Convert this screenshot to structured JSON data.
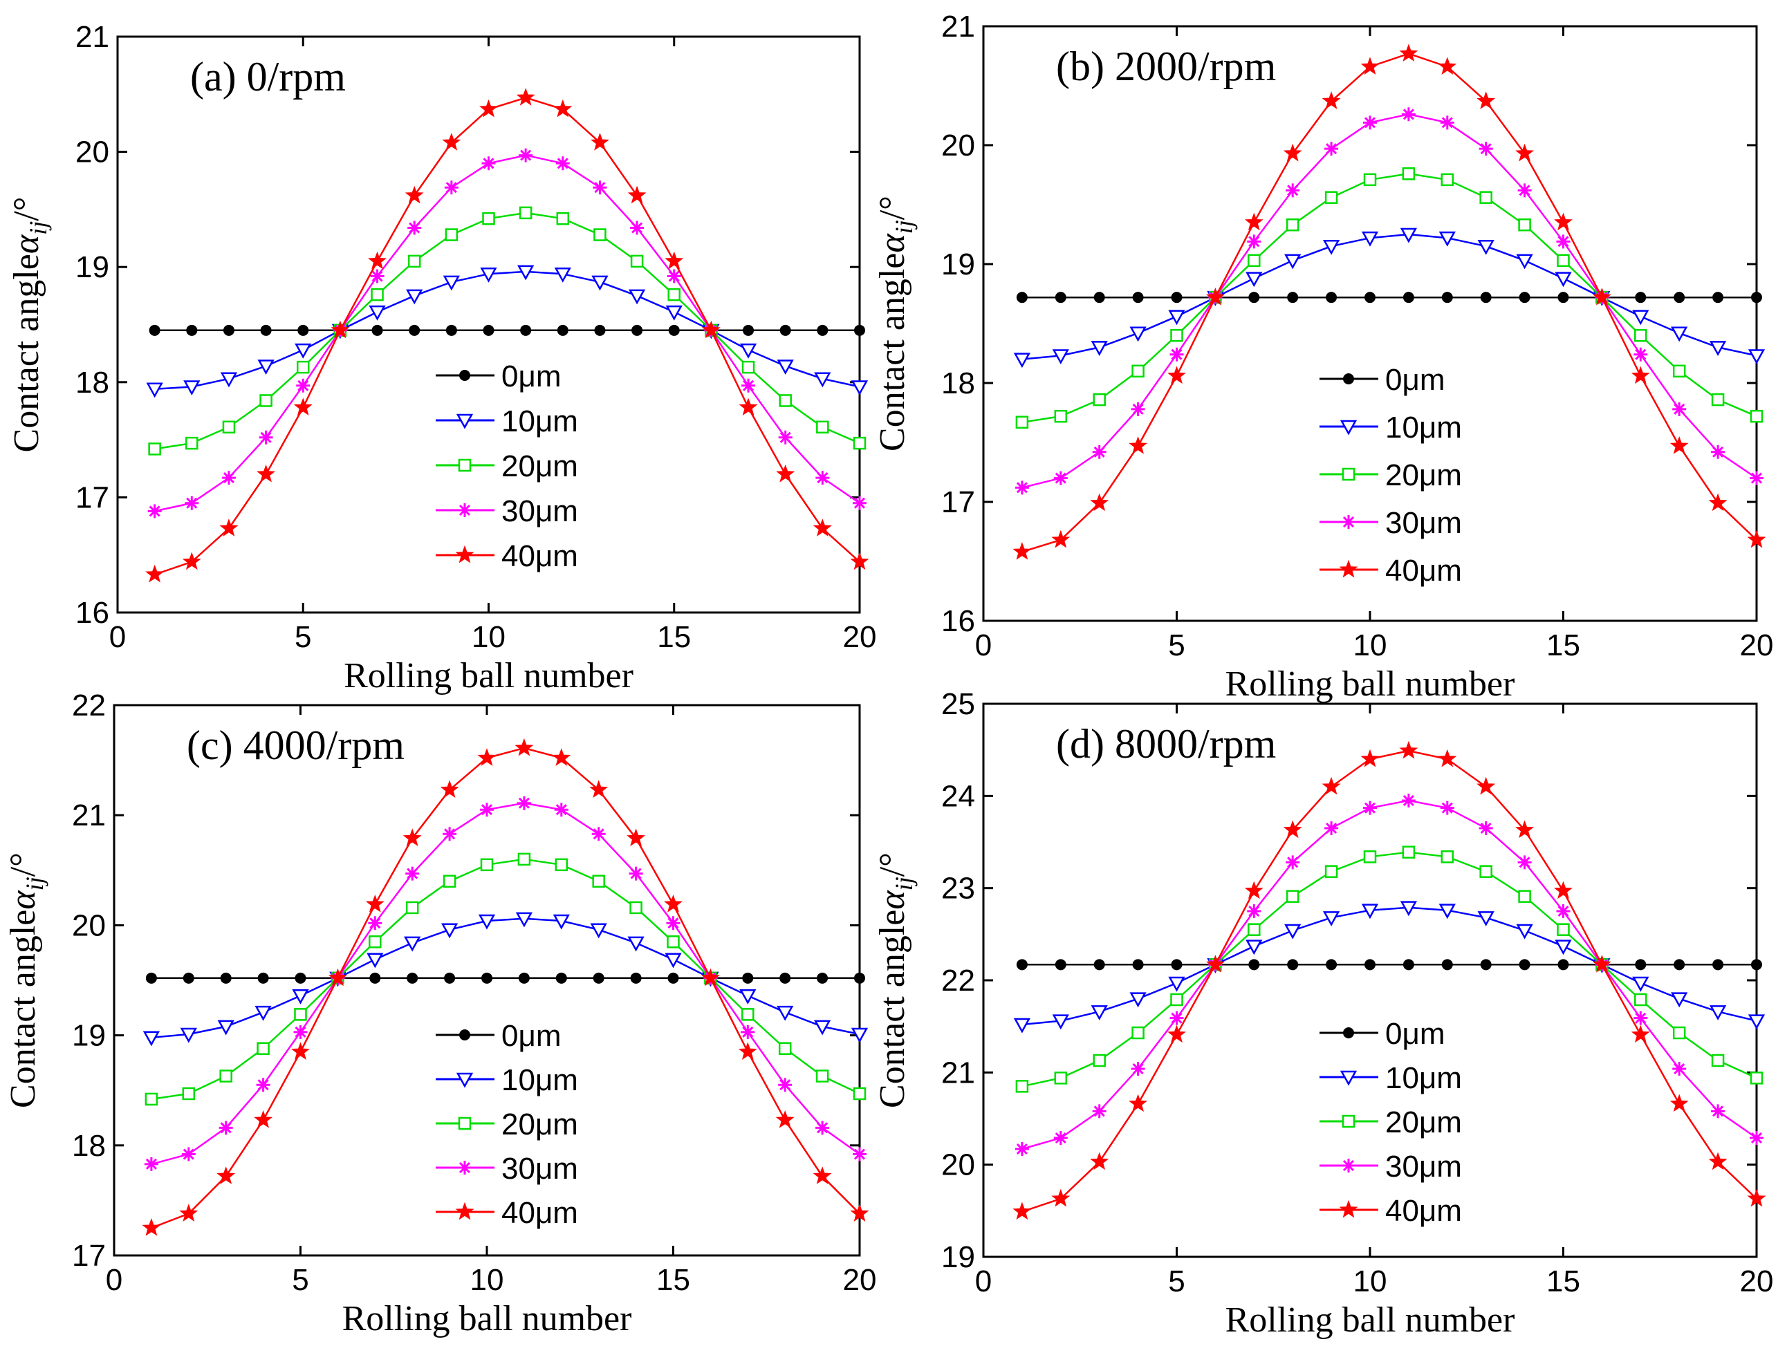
{
  "chart_data": [
    {
      "type": "line",
      "title": "(a) 0/rpm",
      "xlabel": "Rolling ball number",
      "ylabel": "Contact angle",
      "ylabel_symbol": "α",
      "ylabel_subscript": "ij",
      "ylabel_unit": "/°",
      "xlim": [
        0,
        20
      ],
      "ylim": [
        16,
        21
      ],
      "xticks": [
        "0",
        "5",
        "10",
        "15",
        "20"
      ],
      "yticks": [
        "16",
        "17",
        "18",
        "19",
        "20",
        "21"
      ],
      "x": [
        1,
        2,
        3,
        4,
        5,
        6,
        7,
        8,
        9,
        10,
        11,
        12,
        13,
        14,
        15,
        16,
        17,
        18,
        19,
        20
      ],
      "series": [
        {
          "name": "0μm",
          "color": "#000000",
          "marker": "dot",
          "values": [
            18.45,
            18.45,
            18.45,
            18.45,
            18.45,
            18.45,
            18.45,
            18.45,
            18.45,
            18.45,
            18.45,
            18.45,
            18.45,
            18.45,
            18.45,
            18.45,
            18.45,
            18.45,
            18.45,
            18.45
          ]
        },
        {
          "name": "10μm",
          "color": "#0000ff",
          "marker": "triangle-down",
          "values": [
            17.94,
            17.96,
            18.03,
            18.14,
            18.28,
            18.45,
            18.61,
            18.75,
            18.87,
            18.94,
            18.96,
            18.94,
            18.87,
            18.75,
            18.61,
            18.45,
            18.28,
            18.14,
            18.03,
            17.96
          ]
        },
        {
          "name": "20μm",
          "color": "#00dd00",
          "marker": "square",
          "values": [
            17.42,
            17.47,
            17.61,
            17.84,
            18.13,
            18.45,
            18.76,
            19.05,
            19.28,
            19.42,
            19.47,
            19.42,
            19.28,
            19.05,
            18.76,
            18.45,
            18.13,
            17.84,
            17.61,
            17.47
          ]
        },
        {
          "name": "30μm",
          "color": "#ff00ff",
          "marker": "asterisk",
          "values": [
            16.88,
            16.95,
            17.17,
            17.52,
            17.97,
            18.45,
            18.92,
            19.34,
            19.69,
            19.9,
            19.97,
            19.9,
            19.69,
            19.34,
            18.92,
            18.45,
            17.97,
            17.52,
            17.17,
            16.95
          ]
        },
        {
          "name": "40μm",
          "color": "#ff0000",
          "marker": "star",
          "values": [
            16.33,
            16.44,
            16.73,
            17.2,
            17.78,
            18.45,
            19.05,
            19.62,
            20.08,
            20.37,
            20.47,
            20.37,
            20.08,
            19.62,
            19.05,
            18.45,
            17.78,
            17.2,
            16.73,
            16.44
          ]
        }
      ]
    },
    {
      "type": "line",
      "title": "(b) 2000/rpm",
      "xlabel": "Rolling ball number",
      "ylabel": "Contact angle",
      "ylabel_symbol": "α",
      "ylabel_subscript": "ij",
      "ylabel_unit": "/°",
      "xlim": [
        0,
        20
      ],
      "ylim": [
        16,
        21
      ],
      "xticks": [
        "0",
        "5",
        "10",
        "15",
        "20"
      ],
      "yticks": [
        "16",
        "17",
        "18",
        "19",
        "20",
        "21"
      ],
      "x": [
        1,
        2,
        3,
        4,
        5,
        6,
        7,
        8,
        9,
        10,
        11,
        12,
        13,
        14,
        15,
        16,
        17,
        18,
        19,
        20
      ],
      "series": [
        {
          "name": "0μm",
          "color": "#000000",
          "marker": "dot",
          "values": [
            18.72,
            18.72,
            18.72,
            18.72,
            18.72,
            18.72,
            18.72,
            18.72,
            18.72,
            18.72,
            18.72,
            18.72,
            18.72,
            18.72,
            18.72,
            18.72,
            18.72,
            18.72,
            18.72,
            18.72
          ]
        },
        {
          "name": "10μm",
          "color": "#0000ff",
          "marker": "triangle-down",
          "values": [
            18.2,
            18.23,
            18.3,
            18.42,
            18.56,
            18.72,
            18.88,
            19.03,
            19.15,
            19.22,
            19.25,
            19.22,
            19.15,
            19.03,
            18.88,
            18.72,
            18.56,
            18.42,
            18.3,
            18.23
          ]
        },
        {
          "name": "20μm",
          "color": "#00dd00",
          "marker": "square",
          "values": [
            17.67,
            17.72,
            17.86,
            18.1,
            18.4,
            18.72,
            19.03,
            19.33,
            19.56,
            19.71,
            19.76,
            19.71,
            19.56,
            19.33,
            19.03,
            18.72,
            18.4,
            18.1,
            17.86,
            17.72
          ]
        },
        {
          "name": "30μm",
          "color": "#ff00ff",
          "marker": "asterisk",
          "values": [
            17.12,
            17.2,
            17.42,
            17.78,
            18.24,
            18.72,
            19.19,
            19.62,
            19.97,
            20.19,
            20.26,
            20.19,
            19.97,
            19.62,
            19.19,
            18.72,
            18.24,
            17.78,
            17.42,
            17.2
          ]
        },
        {
          "name": "40μm",
          "color": "#ff0000",
          "marker": "star",
          "values": [
            16.58,
            16.68,
            16.99,
            17.47,
            18.06,
            18.72,
            19.35,
            19.93,
            20.37,
            20.66,
            20.77,
            20.66,
            20.37,
            19.93,
            19.35,
            18.72,
            18.06,
            17.47,
            16.99,
            16.68
          ]
        }
      ]
    },
    {
      "type": "line",
      "title": "(c) 4000/rpm",
      "xlabel": "Rolling ball number",
      "ylabel": "Contact angle",
      "ylabel_symbol": "α",
      "ylabel_subscript": "ij",
      "ylabel_unit": "/°",
      "xlim": [
        0,
        20
      ],
      "ylim": [
        17,
        22
      ],
      "xticks": [
        "0",
        "5",
        "10",
        "15",
        "20"
      ],
      "yticks": [
        "17",
        "18",
        "19",
        "20",
        "21",
        "22"
      ],
      "x": [
        1,
        2,
        3,
        4,
        5,
        6,
        7,
        8,
        9,
        10,
        11,
        12,
        13,
        14,
        15,
        16,
        17,
        18,
        19,
        20
      ],
      "series": [
        {
          "name": "0μm",
          "color": "#000000",
          "marker": "dot",
          "values": [
            19.52,
            19.52,
            19.52,
            19.52,
            19.52,
            19.52,
            19.52,
            19.52,
            19.52,
            19.52,
            19.52,
            19.52,
            19.52,
            19.52,
            19.52,
            19.52,
            19.52,
            19.52,
            19.52,
            19.52
          ]
        },
        {
          "name": "10μm",
          "color": "#0000ff",
          "marker": "triangle-down",
          "values": [
            18.98,
            19.01,
            19.08,
            19.21,
            19.36,
            19.52,
            19.69,
            19.84,
            19.96,
            20.04,
            20.06,
            20.04,
            19.96,
            19.84,
            19.69,
            19.52,
            19.36,
            19.21,
            19.08,
            19.01
          ]
        },
        {
          "name": "20μm",
          "color": "#00dd00",
          "marker": "square",
          "values": [
            18.42,
            18.47,
            18.63,
            18.88,
            19.19,
            19.52,
            19.85,
            20.16,
            20.4,
            20.55,
            20.6,
            20.55,
            20.4,
            20.16,
            19.85,
            19.52,
            19.19,
            18.88,
            18.63,
            18.47
          ]
        },
        {
          "name": "30μm",
          "color": "#ff00ff",
          "marker": "asterisk",
          "values": [
            17.83,
            17.92,
            18.16,
            18.55,
            19.03,
            19.52,
            20.02,
            20.47,
            20.83,
            21.05,
            21.11,
            21.05,
            20.83,
            20.47,
            20.02,
            19.52,
            19.03,
            18.55,
            18.16,
            17.92
          ]
        },
        {
          "name": "40μm",
          "color": "#ff0000",
          "marker": "star",
          "values": [
            17.25,
            17.38,
            17.72,
            18.23,
            18.85,
            19.52,
            20.19,
            20.79,
            21.23,
            21.52,
            21.61,
            21.52,
            21.23,
            20.79,
            20.19,
            19.52,
            18.85,
            18.23,
            17.72,
            17.38
          ]
        }
      ]
    },
    {
      "type": "line",
      "title": "(d) 8000/rpm",
      "xlabel": "Rolling ball number",
      "ylabel": "Contact angle",
      "ylabel_symbol": "α",
      "ylabel_subscript": "ij",
      "ylabel_unit": "/°",
      "xlim": [
        0,
        20
      ],
      "ylim": [
        19,
        25
      ],
      "xticks": [
        "0",
        "5",
        "10",
        "15",
        "20"
      ],
      "yticks": [
        "19",
        "20",
        "21",
        "22",
        "23",
        "24",
        "25"
      ],
      "x": [
        1,
        2,
        3,
        4,
        5,
        6,
        7,
        8,
        9,
        10,
        11,
        12,
        13,
        14,
        15,
        16,
        17,
        18,
        19,
        20
      ],
      "series": [
        {
          "name": "0μm",
          "color": "#000000",
          "marker": "dot",
          "values": [
            22.17,
            22.17,
            22.17,
            22.17,
            22.17,
            22.17,
            22.17,
            22.17,
            22.17,
            22.17,
            22.17,
            22.17,
            22.17,
            22.17,
            22.17,
            22.17,
            22.17,
            22.17,
            22.17,
            22.17
          ]
        },
        {
          "name": "10μm",
          "color": "#0000ff",
          "marker": "triangle-down",
          "values": [
            21.52,
            21.56,
            21.66,
            21.8,
            21.97,
            22.17,
            22.37,
            22.54,
            22.68,
            22.76,
            22.79,
            22.76,
            22.68,
            22.54,
            22.37,
            22.17,
            21.97,
            21.8,
            21.66,
            21.56
          ]
        },
        {
          "name": "20μm",
          "color": "#00dd00",
          "marker": "square",
          "values": [
            20.85,
            20.94,
            21.13,
            21.43,
            21.79,
            22.17,
            22.55,
            22.91,
            23.18,
            23.34,
            23.39,
            23.34,
            23.18,
            22.91,
            22.55,
            22.17,
            21.79,
            21.43,
            21.13,
            20.94
          ]
        },
        {
          "name": "30μm",
          "color": "#ff00ff",
          "marker": "asterisk",
          "values": [
            20.17,
            20.29,
            20.58,
            21.04,
            21.59,
            22.17,
            22.75,
            23.28,
            23.65,
            23.87,
            23.95,
            23.87,
            23.65,
            23.28,
            22.75,
            22.17,
            21.59,
            21.04,
            20.58,
            20.29
          ]
        },
        {
          "name": "40μm",
          "color": "#ff0000",
          "marker": "star",
          "values": [
            19.49,
            19.63,
            20.03,
            20.66,
            21.41,
            22.17,
            22.97,
            23.63,
            24.1,
            24.4,
            24.49,
            24.4,
            24.1,
            23.63,
            22.97,
            22.17,
            21.41,
            20.66,
            20.03,
            19.63
          ]
        }
      ]
    }
  ]
}
